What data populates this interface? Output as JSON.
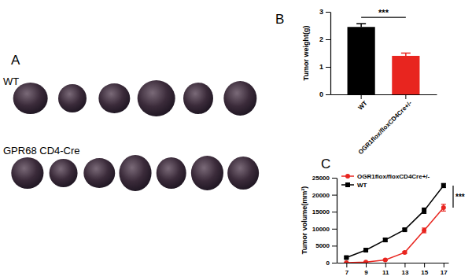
{
  "panel_a": {
    "title": "A",
    "groups": [
      {
        "label": "WT",
        "count": 6
      },
      {
        "label": "GPR68 CD4-Cre",
        "count": 7
      }
    ]
  },
  "chart_data": [
    {
      "type": "bar",
      "title": "B",
      "y_label": "Tumor weight(g)",
      "categories": [
        "WT",
        "OGR1flox/floxCD4Cre+/-"
      ],
      "values": [
        2.45,
        1.4
      ],
      "errors": [
        0.12,
        0.1
      ],
      "colors": [
        "#000000",
        "#e8251f"
      ],
      "ylim": [
        0,
        3
      ],
      "yticks": [
        0,
        1,
        2,
        3
      ],
      "annotations": [
        "***"
      ]
    },
    {
      "type": "line",
      "title": "C",
      "y_label": "Tumor volume(mm³)",
      "x": [
        7,
        9,
        11,
        13,
        15,
        17
      ],
      "series": [
        {
          "name": "OGR1flox/floxCD4Cre+/-",
          "color": "#e8251f",
          "marker": "circle",
          "values": [
            0,
            200,
            800,
            3000,
            9500,
            16200
          ],
          "errors": [
            0,
            100,
            200,
            300,
            700,
            1000
          ]
        },
        {
          "name": "WT",
          "color": "#000000",
          "marker": "square",
          "values": [
            1500,
            3700,
            6700,
            9700,
            15300,
            22700
          ],
          "errors": [
            200,
            300,
            400,
            300,
            800,
            600
          ]
        }
      ],
      "xlim": [
        6,
        17.5
      ],
      "xticks": [
        7,
        9,
        11,
        13,
        15,
        17
      ],
      "ylim": [
        0,
        25000
      ],
      "yticks": [
        0,
        5000,
        10000,
        15000,
        20000,
        25000
      ],
      "legend": "top-left",
      "annotations": [
        "***"
      ]
    }
  ]
}
